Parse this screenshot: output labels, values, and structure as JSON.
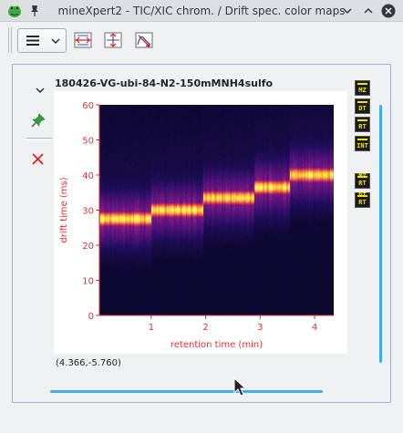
{
  "window": {
    "title": "mineXpert2 - TIC/XIC chrom. / Drift spec. color maps"
  },
  "toolbar": {
    "menu_icon": "hamburger-icon",
    "tools": [
      "reset-axes-icon",
      "zoom-vertical-icon",
      "integrate-icon"
    ]
  },
  "plot": {
    "title": "180426-VG-ubi-84-N2-150mMNH4sulfo",
    "coordinates": "(4.366,-5.760)",
    "side_buttons": [
      "MZ",
      "DT",
      "RT",
      "INT",
      "MZ RT",
      "DT RT"
    ]
  },
  "chart_data": {
    "type": "heatmap",
    "xlabel": "retention time (min)",
    "ylabel": "drift time (ms)",
    "x_ticks": [
      "1",
      "2",
      "3",
      "4"
    ],
    "x_tick_values": [
      1,
      2,
      3,
      4
    ],
    "xlim": [
      0.05,
      4.35
    ],
    "y_ticks": [
      "0",
      "10",
      "20",
      "30",
      "40",
      "50",
      "60"
    ],
    "y_tick_values": [
      0,
      10,
      20,
      30,
      40,
      50,
      60
    ],
    "ylim": [
      0,
      60
    ],
    "segments": [
      {
        "x_start": 0.05,
        "x_end": 1.0,
        "peak_drift": 27.5
      },
      {
        "x_start": 1.0,
        "x_end": 1.95,
        "peak_drift": 30.0
      },
      {
        "x_start": 1.95,
        "x_end": 2.9,
        "peak_drift": 33.5
      },
      {
        "x_start": 2.9,
        "x_end": 3.55,
        "peak_drift": 36.5
      },
      {
        "x_start": 3.55,
        "x_end": 4.35,
        "peak_drift": 40.0
      }
    ],
    "colors": {
      "background": "#0d0a30",
      "axis": "#e03030"
    }
  }
}
